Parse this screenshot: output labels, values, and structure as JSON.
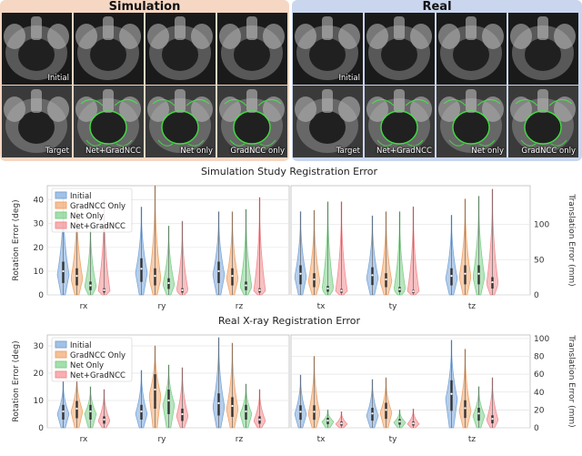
{
  "figure": {
    "panels": [
      {
        "title": "Simulation",
        "image_labels": [
          "",
          "",
          "",
          "",
          "Initial",
          "Target",
          "Net+GradNCC",
          "Net only",
          "GradNCC only"
        ]
      },
      {
        "title": "Real",
        "image_labels": [
          "",
          "",
          "",
          "",
          "Initial",
          "Target",
          "Net+GradNCC",
          "Net only",
          "GradNCC only"
        ]
      }
    ]
  },
  "colors": {
    "initial": "#7aa6d8",
    "gradncc": "#f0a56c",
    "net": "#7ed08a",
    "netgrad": "#f38d90",
    "overlay": "#3ef03e"
  },
  "chart_data": [
    {
      "type": "violin",
      "title": "Simulation Study Registration Error",
      "legend": [
        "Initial",
        "GradNCC Only",
        "Net Only",
        "Net+GradNCC"
      ],
      "legend_position": "top-left",
      "grid": true,
      "left_axis": {
        "label": "Rotation Error (deg)",
        "ylim": [
          0,
          46
        ],
        "ticks": [
          0,
          10,
          20,
          30,
          40
        ]
      },
      "right_axis": {
        "label": "Translation Error (mm)",
        "ylim": [
          0,
          155
        ],
        "ticks": [
          0,
          50,
          100
        ]
      },
      "categories": [
        "rx",
        "ry",
        "rz",
        "tx",
        "ty",
        "tz"
      ],
      "series": [
        {
          "name": "Initial",
          "max": [
            41,
            37,
            35,
            118,
            112,
            113
          ],
          "median": [
            10,
            11,
            10,
            30,
            28,
            27
          ]
        },
        {
          "name": "GradNCC Only",
          "max": [
            38,
            46,
            35,
            120,
            118,
            136
          ],
          "median": [
            8,
            8,
            8,
            22,
            22,
            30
          ]
        },
        {
          "name": "Net Only",
          "max": [
            30,
            29,
            36,
            132,
            118,
            140
          ],
          "median": [
            4,
            5,
            4,
            9,
            8,
            30
          ]
        },
        {
          "name": "Net+GradNCC",
          "max": [
            40,
            31,
            41,
            132,
            125,
            150
          ],
          "median": [
            2,
            2,
            2,
            6,
            5,
            18
          ]
        }
      ]
    },
    {
      "type": "violin",
      "title": "Real X-ray Registration Error",
      "legend": [
        "Initial",
        "GradNCC Only",
        "Net Only",
        "Net+GradNCC"
      ],
      "legend_position": "top-left",
      "grid": true,
      "left_axis": {
        "label": "Rotation Error (deg)",
        "ylim": [
          0,
          34
        ],
        "ticks": [
          0,
          10,
          20,
          30
        ]
      },
      "right_axis": {
        "label": "Translation Error (mm)",
        "ylim": [
          0,
          104
        ],
        "ticks": [
          0,
          20,
          40,
          60,
          80,
          100
        ]
      },
      "categories": [
        "rx",
        "ry",
        "rz",
        "tx",
        "ty",
        "tz"
      ],
      "series": [
        {
          "name": "Initial",
          "max": [
            17,
            21,
            33,
            59,
            54,
            98
          ],
          "median": [
            6,
            6,
            9,
            18,
            16,
            38
          ]
        },
        {
          "name": "GradNCC Only",
          "max": [
            20,
            30,
            31,
            80,
            56,
            88
          ],
          "median": [
            7,
            14,
            8,
            18,
            20,
            22
          ]
        },
        {
          "name": "Net Only",
          "max": [
            15,
            23,
            16,
            20,
            20,
            46
          ],
          "median": [
            6,
            10,
            6,
            8,
            7,
            16
          ]
        },
        {
          "name": "Net+GradNCC",
          "max": [
            14,
            22,
            14,
            18,
            21,
            56
          ],
          "median": [
            3,
            5,
            3,
            5,
            5,
            10
          ]
        }
      ]
    }
  ]
}
